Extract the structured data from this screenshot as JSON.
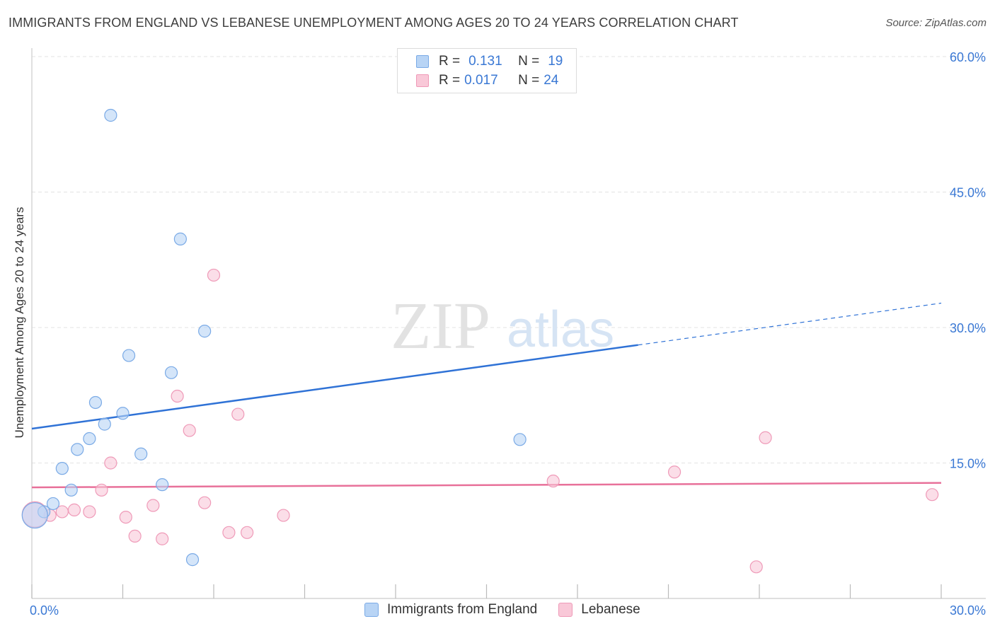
{
  "title": "IMMIGRANTS FROM ENGLAND VS LEBANESE UNEMPLOYMENT AMONG AGES 20 TO 24 YEARS CORRELATION CHART",
  "source": "Source: ZipAtlas.com",
  "watermark": {
    "zip": "ZIP",
    "atlas": "atlas"
  },
  "legend": {
    "rows": [
      {
        "r_label": "R =",
        "r_value": "0.131",
        "n_label": "N =",
        "n_value": "19"
      },
      {
        "r_label": "R =",
        "r_value": "0.017",
        "n_label": "N =",
        "n_value": "24"
      }
    ]
  },
  "chart_data": {
    "type": "scatter",
    "title": "IMMIGRANTS FROM ENGLAND VS LEBANESE UNEMPLOYMENT AMONG AGES 20 TO 24 YEARS CORRELATION CHART",
    "xlabel": "",
    "ylabel": "Unemployment Among Ages 20 to 24 years",
    "xlim": [
      0,
      30
    ],
    "ylim": [
      0,
      60
    ],
    "x_ticks": [
      0,
      3,
      6,
      9,
      12,
      15,
      18,
      21,
      24,
      27,
      30
    ],
    "x_tick_labels": [
      "0.0%",
      "30.0%"
    ],
    "y_ticks": [
      15,
      30,
      45,
      60
    ],
    "y_tick_labels": [
      "15.0%",
      "30.0%",
      "45.0%",
      "60.0%"
    ],
    "colors": {
      "england_fill": "#b8d4f5",
      "england_stroke": "#7aaae6",
      "england_line": "#2f72d6",
      "lebanese_fill": "#f9c8d8",
      "lebanese_stroke": "#ef9ab8",
      "lebanese_line": "#e8719a",
      "axis_label": "#3a78d4",
      "grid": "#e3e3e3"
    },
    "series": [
      {
        "name": "Immigrants from England",
        "r": 0.131,
        "n": 19,
        "points": [
          {
            "x": 2.6,
            "y": 53.5
          },
          {
            "x": 4.9,
            "y": 39.8
          },
          {
            "x": 5.7,
            "y": 29.6
          },
          {
            "x": 3.2,
            "y": 26.9
          },
          {
            "x": 4.6,
            "y": 25.0
          },
          {
            "x": 2.1,
            "y": 21.7
          },
          {
            "x": 3.0,
            "y": 20.5
          },
          {
            "x": 2.4,
            "y": 19.3
          },
          {
            "x": 1.9,
            "y": 17.7
          },
          {
            "x": 1.5,
            "y": 16.5
          },
          {
            "x": 3.6,
            "y": 16.0
          },
          {
            "x": 1.0,
            "y": 14.4
          },
          {
            "x": 4.3,
            "y": 12.6
          },
          {
            "x": 1.3,
            "y": 12.0
          },
          {
            "x": 0.7,
            "y": 10.5
          },
          {
            "x": 0.4,
            "y": 9.6
          },
          {
            "x": 0.1,
            "y": 9.2,
            "large": true
          },
          {
            "x": 5.3,
            "y": 4.3
          },
          {
            "x": 16.1,
            "y": 17.6
          }
        ],
        "trend": {
          "x_start": 0,
          "y_start": 18.8,
          "x_solid_end": 20.0,
          "x_end": 30.0,
          "y_end": 32.7
        }
      },
      {
        "name": "Lebanese",
        "r": 0.017,
        "n": 24,
        "points": [
          {
            "x": 6.0,
            "y": 35.8
          },
          {
            "x": 4.8,
            "y": 22.4
          },
          {
            "x": 6.8,
            "y": 20.4
          },
          {
            "x": 5.2,
            "y": 18.6
          },
          {
            "x": 2.6,
            "y": 15.0
          },
          {
            "x": 2.3,
            "y": 12.0
          },
          {
            "x": 5.7,
            "y": 10.6
          },
          {
            "x": 4.0,
            "y": 10.3
          },
          {
            "x": 1.4,
            "y": 9.8
          },
          {
            "x": 1.0,
            "y": 9.6
          },
          {
            "x": 1.9,
            "y": 9.6
          },
          {
            "x": 0.6,
            "y": 9.2
          },
          {
            "x": 3.1,
            "y": 9.0
          },
          {
            "x": 8.3,
            "y": 9.2
          },
          {
            "x": 3.4,
            "y": 6.9
          },
          {
            "x": 4.3,
            "y": 6.6
          },
          {
            "x": 6.5,
            "y": 7.3
          },
          {
            "x": 7.1,
            "y": 7.3
          },
          {
            "x": 0.1,
            "y": 9.3,
            "large": true
          },
          {
            "x": 17.2,
            "y": 13.0
          },
          {
            "x": 21.2,
            "y": 14.0
          },
          {
            "x": 24.2,
            "y": 17.8
          },
          {
            "x": 29.7,
            "y": 11.5
          },
          {
            "x": 23.9,
            "y": 3.5
          }
        ],
        "trend": {
          "x_start": 0,
          "y_start": 12.3,
          "x_solid_end": 30.0,
          "x_end": 30.0,
          "y_end": 12.8
        }
      }
    ]
  }
}
